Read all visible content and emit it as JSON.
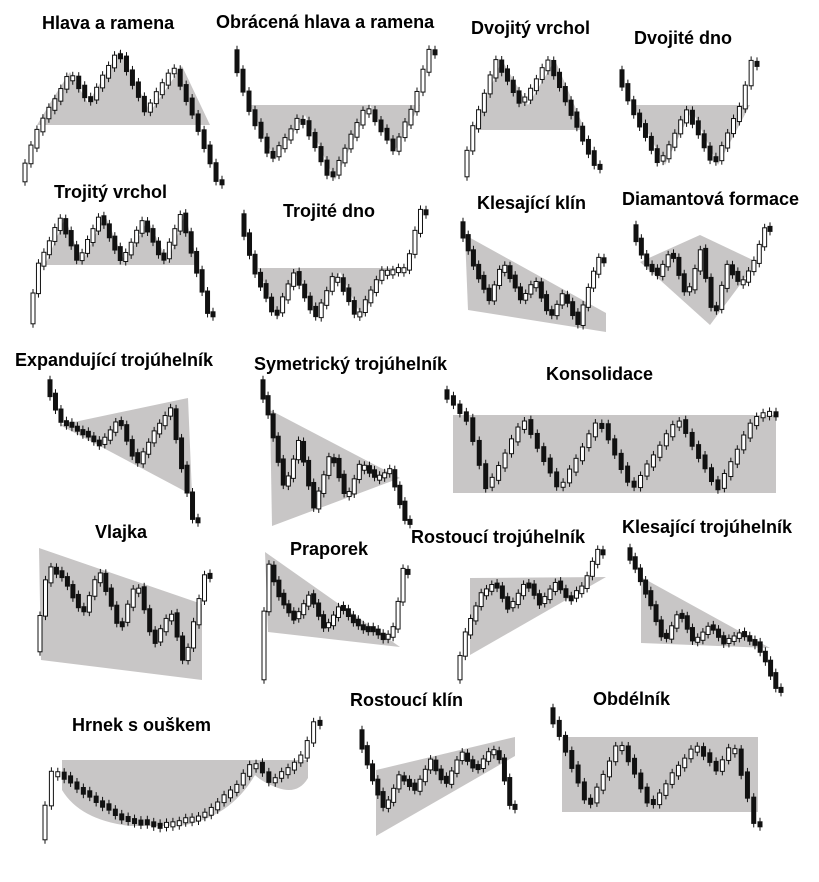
{
  "colors": {
    "zone": "#c8c6c6",
    "candle": "#111111",
    "background": "#ffffff"
  },
  "patterns": [
    {
      "id": "head-shoulders",
      "title": "Hlava a ramena"
    },
    {
      "id": "inverse-head-shoulders",
      "title": "Obrácená hlava a ramena"
    },
    {
      "id": "double-top",
      "title": "Dvojitý vrchol"
    },
    {
      "id": "double-bottom",
      "title": "Dvojité dno"
    },
    {
      "id": "triple-top",
      "title": "Trojitý vrchol"
    },
    {
      "id": "triple-bottom",
      "title": "Trojité dno"
    },
    {
      "id": "falling-wedge",
      "title": "Klesající klín"
    },
    {
      "id": "diamond",
      "title": "Diamantová formace"
    },
    {
      "id": "expanding-triangle",
      "title": "Expandující trojúhelník"
    },
    {
      "id": "symmetric-triangle",
      "title": "Symetrický trojúhelník"
    },
    {
      "id": "consolidation",
      "title": "Konsolidace"
    },
    {
      "id": "flag",
      "title": "Vlajka"
    },
    {
      "id": "pennant",
      "title": "Praporek"
    },
    {
      "id": "ascending-triangle",
      "title": "Rostoucí trojúhelník"
    },
    {
      "id": "descending-triangle",
      "title": "Klesající trojúhelník"
    },
    {
      "id": "cup-handle",
      "title": "Hrnek s ouškem"
    },
    {
      "id": "rising-wedge",
      "title": "Rostoucí klín"
    },
    {
      "id": "rectangle",
      "title": "Obdélník"
    }
  ]
}
